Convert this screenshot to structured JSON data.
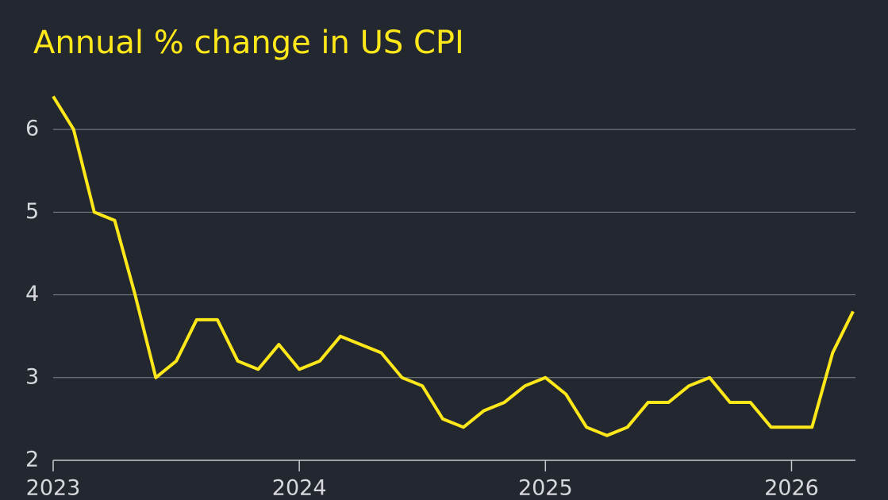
{
  "chart_data": {
    "type": "line",
    "title": "Annual % change in US CPI",
    "x": [
      2023,
      2023.083,
      2023.167,
      2023.25,
      2023.333,
      2023.417,
      2023.5,
      2023.583,
      2023.667,
      2023.75,
      2023.833,
      2023.917,
      2024,
      2024.083,
      2024.167,
      2024.25,
      2024.333,
      2024.417,
      2024.5,
      2024.583,
      2024.667,
      2024.75,
      2024.833,
      2024.917,
      2025,
      2025.083,
      2025.167,
      2025.25,
      2025.333,
      2025.417,
      2025.5,
      2025.583,
      2025.667,
      2025.75,
      2025.833,
      2025.917,
      2026,
      2026.083,
      2026.167,
      2026.25
    ],
    "series": [
      {
        "name": "US CPI",
        "color": "#ffe81a",
        "values": [
          6.4,
          6.0,
          5.0,
          4.9,
          4.0,
          3.0,
          3.2,
          3.7,
          3.7,
          3.2,
          3.1,
          3.4,
          3.1,
          3.2,
          3.5,
          3.4,
          3.3,
          3.0,
          2.9,
          2.5,
          2.4,
          2.6,
          2.7,
          2.9,
          3.0,
          2.8,
          2.4,
          2.3,
          2.4,
          2.7,
          2.7,
          2.9,
          3.0,
          2.7,
          2.7,
          2.4,
          2.4,
          2.4,
          3.3,
          3.8
        ]
      }
    ],
    "xlim": [
      2023,
      2026.25
    ],
    "xticks": [
      2023,
      2024,
      2025,
      2026
    ],
    "ylim": [
      2,
      6.5
    ],
    "yticks": [
      2,
      3,
      4,
      5,
      6
    ],
    "grid": true
  }
}
